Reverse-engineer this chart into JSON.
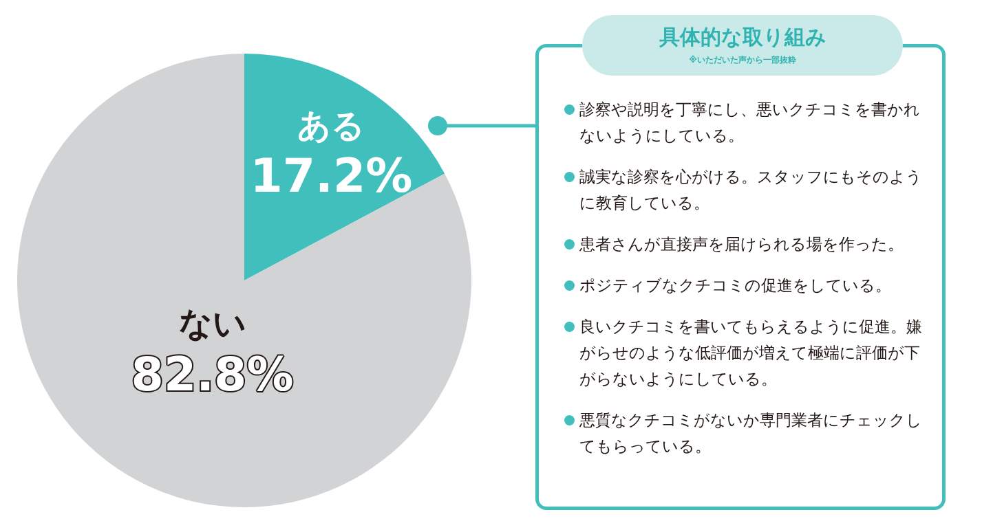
{
  "chart_data": [
    {
      "type": "pie",
      "categories": [
        "ある",
        "ない"
      ],
      "values": [
        17.2,
        82.8
      ],
      "colors": [
        "#40bfbd",
        "#d2d3d5"
      ],
      "value_labels": [
        "17.2%",
        "82.8%"
      ],
      "legend": false
    },
    {
      "type": "other",
      "title": "具体的な取り組み",
      "subtitle": "※いただいた声から一部抜粋",
      "annotations": [
        "診察や説明を丁寧にし、悪いクチコミを書かれないようにしている。",
        "誠実な診察を心がける。スタッフにもそのように教育している。",
        "患者さんが直接声を届けられる場を作った。",
        "ポジティブなクチコミの促進をしている。",
        "良いクチコミを書いてもらえるように促進。嫌がらせのような低評価が増えて極端に評価が下がらないようにしている。",
        "悪質なクチコミがないか専門業者にチェックしてもらっている。"
      ]
    }
  ]
}
